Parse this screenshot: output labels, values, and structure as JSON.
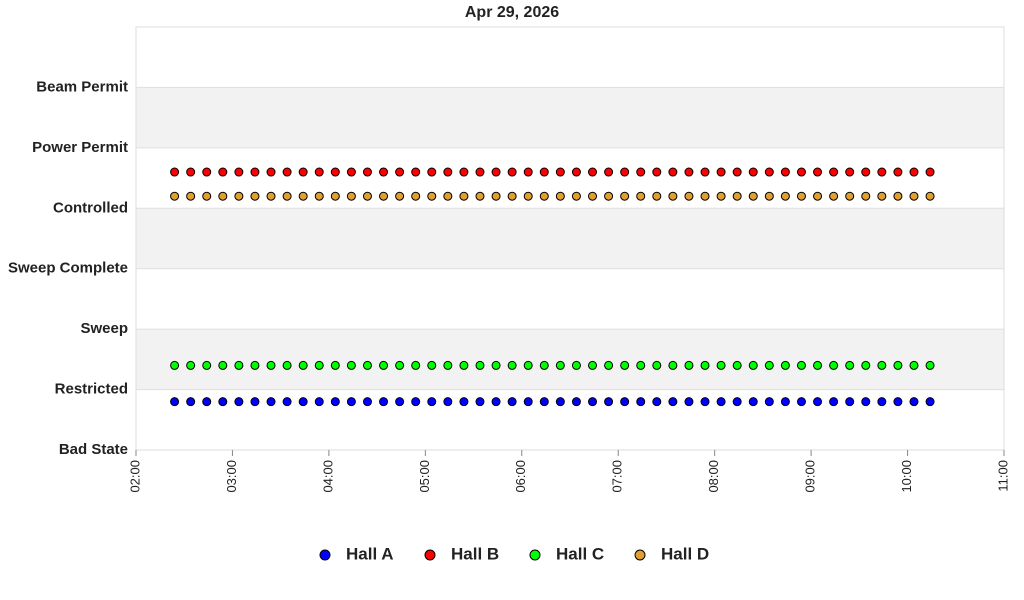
{
  "chart_data": {
    "type": "scatter",
    "title": "Apr 29, 2026",
    "x": [
      144,
      154,
      164,
      174,
      184,
      194,
      204,
      214,
      224,
      234,
      244,
      254,
      264,
      274,
      284,
      294,
      304,
      314,
      324,
      334,
      344,
      354,
      364,
      374,
      384,
      394,
      404,
      414,
      424,
      434,
      444,
      454,
      464,
      474,
      484,
      494,
      504,
      514,
      524,
      534,
      544,
      554,
      564,
      574,
      584,
      594,
      604,
      614
    ],
    "xlim": [
      120,
      660
    ],
    "xticks": [
      {
        "value": 120,
        "label": "02:00"
      },
      {
        "value": 180,
        "label": "03:00"
      },
      {
        "value": 240,
        "label": "04:00"
      },
      {
        "value": 300,
        "label": "05:00"
      },
      {
        "value": 360,
        "label": "06:00"
      },
      {
        "value": 420,
        "label": "07:00"
      },
      {
        "value": 480,
        "label": "08:00"
      },
      {
        "value": 540,
        "label": "09:00"
      },
      {
        "value": 600,
        "label": "10:00"
      },
      {
        "value": 660,
        "label": "11:00"
      }
    ],
    "ylim": [
      0,
      7
    ],
    "yticks": [
      {
        "value": 0,
        "label": "Bad State"
      },
      {
        "value": 1,
        "label": "Restricted"
      },
      {
        "value": 2,
        "label": "Sweep"
      },
      {
        "value": 3,
        "label": "Sweep Complete"
      },
      {
        "value": 4,
        "label": "Controlled"
      },
      {
        "value": 5,
        "label": "Power Permit"
      },
      {
        "value": 6,
        "label": "Beam Permit"
      }
    ],
    "grid": true,
    "legend": "bottom",
    "series": [
      {
        "name": "Hall A",
        "color": "#0000ff",
        "values": [
          0.8,
          0.8,
          0.8,
          0.8,
          0.8,
          0.8,
          0.8,
          0.8,
          0.8,
          0.8,
          0.8,
          0.8,
          0.8,
          0.8,
          0.8,
          0.8,
          0.8,
          0.8,
          0.8,
          0.8,
          0.8,
          0.8,
          0.8,
          0.8,
          0.8,
          0.8,
          0.8,
          0.8,
          0.8,
          0.8,
          0.8,
          0.8,
          0.8,
          0.8,
          0.8,
          0.8,
          0.8,
          0.8,
          0.8,
          0.8,
          0.8,
          0.8,
          0.8,
          0.8,
          0.8,
          0.8,
          0.8,
          0.8
        ]
      },
      {
        "name": "Hall B",
        "color": "#ff0000",
        "values": [
          4.6,
          4.6,
          4.6,
          4.6,
          4.6,
          4.6,
          4.6,
          4.6,
          4.6,
          4.6,
          4.6,
          4.6,
          4.6,
          4.6,
          4.6,
          4.6,
          4.6,
          4.6,
          4.6,
          4.6,
          4.6,
          4.6,
          4.6,
          4.6,
          4.6,
          4.6,
          4.6,
          4.6,
          4.6,
          4.6,
          4.6,
          4.6,
          4.6,
          4.6,
          4.6,
          4.6,
          4.6,
          4.6,
          4.6,
          4.6,
          4.6,
          4.6,
          4.6,
          4.6,
          4.6,
          4.6,
          4.6,
          4.6
        ]
      },
      {
        "name": "Hall C",
        "color": "#00ff00",
        "values": [
          1.4,
          1.4,
          1.4,
          1.4,
          1.4,
          1.4,
          1.4,
          1.4,
          1.4,
          1.4,
          1.4,
          1.4,
          1.4,
          1.4,
          1.4,
          1.4,
          1.4,
          1.4,
          1.4,
          1.4,
          1.4,
          1.4,
          1.4,
          1.4,
          1.4,
          1.4,
          1.4,
          1.4,
          1.4,
          1.4,
          1.4,
          1.4,
          1.4,
          1.4,
          1.4,
          1.4,
          1.4,
          1.4,
          1.4,
          1.4,
          1.4,
          1.4,
          1.4,
          1.4,
          1.4,
          1.4,
          1.4,
          1.4
        ]
      },
      {
        "name": "Hall D",
        "color": "#e0a030",
        "values": [
          4.2,
          4.2,
          4.2,
          4.2,
          4.2,
          4.2,
          4.2,
          4.2,
          4.2,
          4.2,
          4.2,
          4.2,
          4.2,
          4.2,
          4.2,
          4.2,
          4.2,
          4.2,
          4.2,
          4.2,
          4.2,
          4.2,
          4.2,
          4.2,
          4.2,
          4.2,
          4.2,
          4.2,
          4.2,
          4.2,
          4.2,
          4.2,
          4.2,
          4.2,
          4.2,
          4.2,
          4.2,
          4.2,
          4.2,
          4.2,
          4.2,
          4.2,
          4.2,
          4.2,
          4.2,
          4.2,
          4.2,
          4.2
        ]
      }
    ]
  }
}
